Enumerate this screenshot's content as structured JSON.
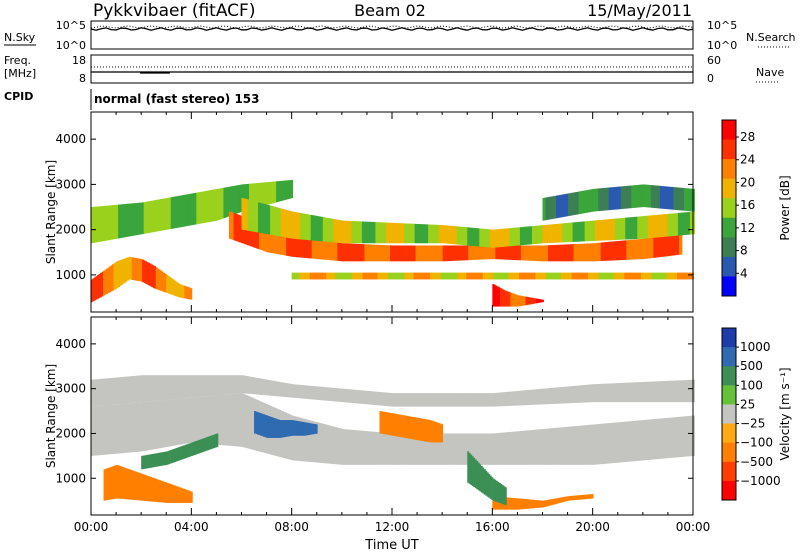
{
  "header": {
    "radar": "Pykkvibaer (fitACF)",
    "beam": "Beam 02",
    "date": "15/May/2011"
  },
  "status_panels": {
    "nsky_label": "N.Sky",
    "nsearch_label": "N.Search",
    "nsky_ticks": [
      "10^5",
      "10^0"
    ],
    "nsearch_ticks": [
      "10^5",
      "10^0"
    ],
    "freq_label_lines": [
      "Freq.",
      "[MHz]"
    ],
    "freq_ticks": [
      "18",
      "8"
    ],
    "nave_label": "Nave",
    "nave_ticks": [
      "60",
      "0"
    ],
    "cpid_label": "CPID",
    "cpid_text": "normal (fast stereo) 153"
  },
  "colors": {
    "power_scale": [
      "#0000ff",
      "#2a5ab0",
      "#3d7f54",
      "#3aa53a",
      "#9ad11d",
      "#f0b400",
      "#ff8000",
      "#ff3000",
      "#ff0000"
    ],
    "velocity_scale": [
      "#1c3caa",
      "#2f6bb0",
      "#3c8f55",
      "#63c23a",
      "#c4c4c0",
      "#ffaa10",
      "#ff8000",
      "#ff4000",
      "#ff0000"
    ],
    "ground_scatter": "#bebeb9"
  },
  "chart_data": [
    {
      "type": "heatmap",
      "name": "power",
      "ylabel": "Slant Range [km]",
      "ylim": [
        180,
        4600
      ],
      "yticks": [
        "1000",
        "2000",
        "3000",
        "4000"
      ],
      "xlim": [
        "00:00",
        "24:00"
      ],
      "colorbar_label": "Power [dB]",
      "colorbar_ticks": [
        "4",
        "8",
        "12",
        "16",
        "20",
        "24",
        "28"
      ],
      "colorbar_range": [
        0,
        31
      ],
      "bands": [
        {
          "t": [
            0,
            1,
            2,
            3,
            4,
            5,
            6,
            7,
            8
          ],
          "lo": [
            1700,
            1800,
            1900,
            2000,
            2100,
            2200,
            2400,
            2550,
            2700
          ],
          "hi": [
            2500,
            2550,
            2600,
            2700,
            2800,
            2900,
            3000,
            3050,
            3100
          ],
          "value": 14
        },
        {
          "t": [
            0,
            0.5,
            1,
            1.5,
            2,
            2.5,
            3,
            3.5,
            4
          ],
          "lo": [
            400,
            550,
            700,
            900,
            850,
            700,
            600,
            500,
            450
          ],
          "hi": [
            900,
            1100,
            1300,
            1400,
            1350,
            1200,
            1000,
            800,
            700
          ],
          "value": 22
        },
        {
          "t": [
            5.5,
            6,
            7,
            8,
            10,
            12,
            14,
            16,
            18,
            20,
            22,
            23.5
          ],
          "lo": [
            1800,
            1700,
            1500,
            1400,
            1300,
            1300,
            1300,
            1350,
            1300,
            1300,
            1350,
            1450
          ],
          "hi": [
            2400,
            2300,
            2100,
            1900,
            1700,
            1650,
            1650,
            1650,
            1650,
            1700,
            1800,
            1950
          ],
          "value": 24
        },
        {
          "t": [
            6,
            8,
            10,
            12,
            14,
            16,
            18,
            20,
            22,
            24
          ],
          "lo": [
            2000,
            1800,
            1700,
            1700,
            1700,
            1600,
            1700,
            1750,
            1800,
            1900
          ],
          "hi": [
            2700,
            2400,
            2200,
            2150,
            2100,
            2000,
            2100,
            2200,
            2300,
            2400
          ],
          "value": 16
        },
        {
          "t": [
            16,
            16.5,
            17,
            17.5,
            18
          ],
          "lo": [
            300,
            300,
            300,
            350,
            400
          ],
          "hi": [
            800,
            650,
            550,
            500,
            450
          ],
          "value": 26
        },
        {
          "t": [
            18,
            20,
            22,
            24
          ],
          "lo": [
            2200,
            2400,
            2500,
            2400
          ],
          "hi": [
            2700,
            2900,
            3000,
            2900
          ],
          "value": 9
        },
        {
          "t": [
            8,
            12,
            16,
            20,
            24
          ],
          "lo": [
            900,
            900,
            900,
            900,
            900
          ],
          "hi": [
            1050,
            1050,
            1050,
            1050,
            1050
          ],
          "value": 19
        }
      ]
    },
    {
      "type": "heatmap",
      "name": "velocity",
      "ylabel": "Slant Range [km]",
      "ylim": [
        180,
        4600
      ],
      "yticks": [
        "1000",
        "2000",
        "3000",
        "4000"
      ],
      "xlabel": "Time UT",
      "xlim": [
        "00:00",
        "24:00"
      ],
      "xticks": [
        "00:00",
        "04:00",
        "08:00",
        "12:00",
        "16:00",
        "20:00",
        "00:00"
      ],
      "colorbar_label": "Velocity [m s⁻¹]",
      "colorbar_ticks": [
        "1000",
        "500",
        "100",
        "25",
        "−25",
        "−100",
        "−500",
        "−1000"
      ],
      "bands": [
        {
          "t": [
            0,
            2,
            4,
            6,
            8,
            10,
            12,
            14,
            16,
            18,
            20,
            22,
            24
          ],
          "lo": [
            1500,
            1600,
            1800,
            1700,
            1400,
            1300,
            1300,
            1300,
            1300,
            1300,
            1300,
            1400,
            1500
          ],
          "hi": [
            2600,
            2700,
            2800,
            2900,
            2400,
            2100,
            2000,
            2000,
            2000,
            2100,
            2200,
            2300,
            2400
          ],
          "value": 0
        },
        {
          "t": [
            0,
            2,
            4,
            6,
            8,
            12,
            16,
            20,
            24
          ],
          "lo": [
            2600,
            2700,
            2800,
            2900,
            2800,
            2600,
            2600,
            2700,
            2700
          ],
          "hi": [
            3200,
            3300,
            3300,
            3300,
            3100,
            2900,
            2900,
            3100,
            3200
          ],
          "value": 0
        },
        {
          "t": [
            0.5,
            1,
            2,
            3,
            4
          ],
          "lo": [
            500,
            550,
            500,
            450,
            450
          ],
          "hi": [
            1200,
            1300,
            1100,
            900,
            700
          ],
          "value": -300
        },
        {
          "t": [
            6.5,
            7,
            7.5,
            8,
            8.5,
            9
          ],
          "lo": [
            2000,
            1900,
            1900,
            1950,
            1950,
            2000
          ],
          "hi": [
            2500,
            2400,
            2300,
            2300,
            2250,
            2200
          ],
          "value": 800
        },
        {
          "t": [
            11.5,
            12.5,
            13.5,
            14
          ],
          "lo": [
            2000,
            1900,
            1800,
            1800
          ],
          "hi": [
            2500,
            2400,
            2300,
            2200
          ],
          "value": -300
        },
        {
          "t": [
            16,
            17,
            18,
            19,
            20
          ],
          "lo": [
            300,
            300,
            350,
            500,
            550
          ],
          "hi": [
            600,
            550,
            500,
            600,
            650
          ],
          "value": -200
        },
        {
          "t": [
            15,
            15.5,
            16,
            16.5
          ],
          "lo": [
            900,
            700,
            500,
            400
          ],
          "hi": [
            1600,
            1300,
            1000,
            800
          ],
          "value": 300
        },
        {
          "t": [
            2,
            3,
            4,
            5
          ],
          "lo": [
            1200,
            1300,
            1500,
            1700
          ],
          "hi": [
            1500,
            1600,
            1800,
            2000
          ],
          "value": 200
        }
      ]
    }
  ]
}
